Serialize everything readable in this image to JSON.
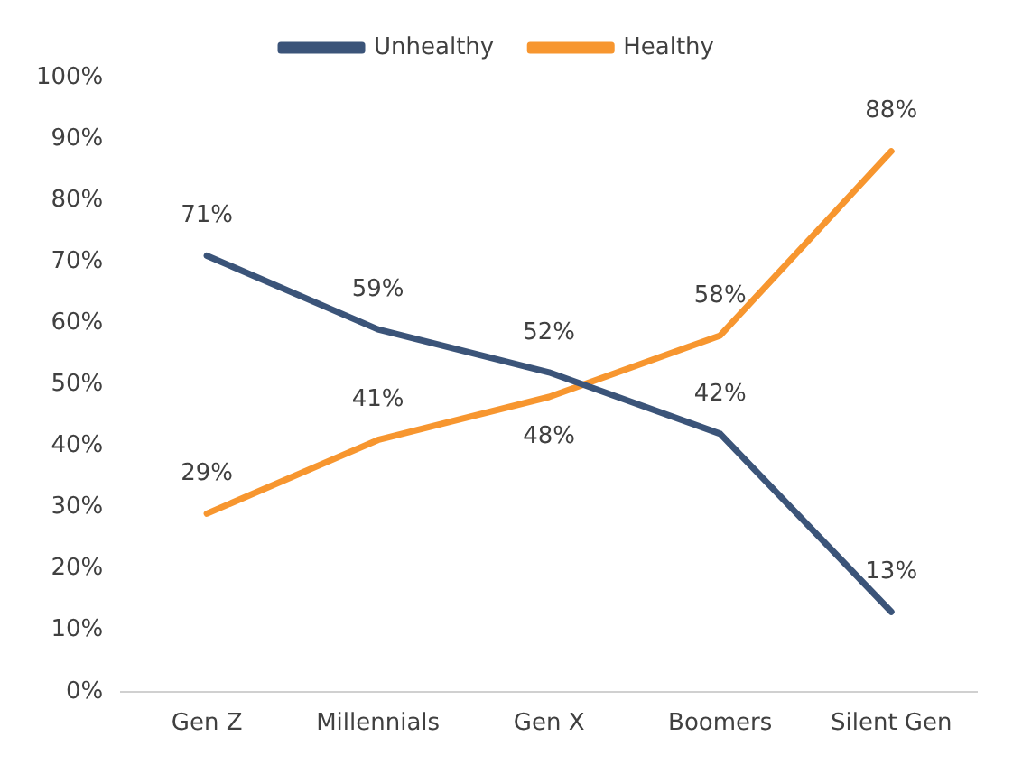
{
  "chart_data": {
    "type": "line",
    "categories": [
      "Gen Z",
      "Millennials",
      "Gen X",
      "Boomers",
      "Silent Gen"
    ],
    "series": [
      {
        "name": "Unhealthy",
        "color": "#3b5479",
        "values": [
          71,
          59,
          52,
          42,
          13
        ],
        "value_labels": [
          "71%",
          "59%",
          "52%",
          "42%",
          "13%"
        ]
      },
      {
        "name": "Healthy",
        "color": "#f7962f",
        "values": [
          29,
          41,
          48,
          58,
          88
        ],
        "value_labels": [
          "29%",
          "41%",
          "48%",
          "58%",
          "88%"
        ]
      }
    ],
    "ylim": [
      0,
      100
    ],
    "yticks": [
      {
        "value": 0,
        "label": "0%"
      },
      {
        "value": 10,
        "label": "10%"
      },
      {
        "value": 20,
        "label": "20%"
      },
      {
        "value": 30,
        "label": "30%"
      },
      {
        "value": 40,
        "label": "40%"
      },
      {
        "value": 50,
        "label": "50%"
      },
      {
        "value": 60,
        "label": "60%"
      },
      {
        "value": 70,
        "label": "70%"
      },
      {
        "value": 80,
        "label": "80%"
      },
      {
        "value": 90,
        "label": "90%"
      },
      {
        "value": 100,
        "label": "100%"
      }
    ],
    "grid": false,
    "legend": "top",
    "marker": "none",
    "line_style": "solid"
  }
}
